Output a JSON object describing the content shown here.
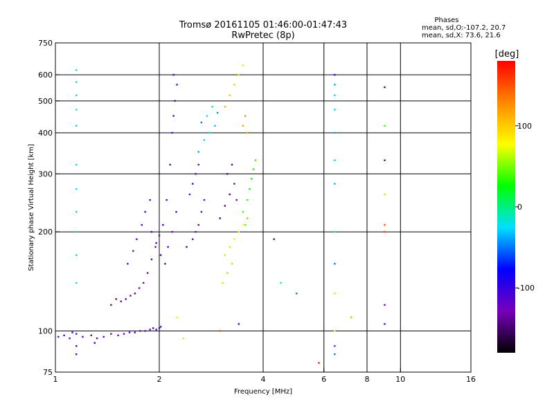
{
  "chart_data": {
    "type": "scatter",
    "title": "Tromsø 20161105 01:46:00-01:47:43",
    "subtitle": "RwPretec (8p)",
    "stats": {
      "heading": "Phases",
      "line1": "mean, sd,O:-107.2, 20.7",
      "line2": "mean, sd,X:  73.6, 21.6"
    },
    "xlabel": "Frequency [MHz]",
    "ylabel": "Stationary phase Virtual Height [km]",
    "x_scale": "log",
    "y_scale": "log",
    "xlim": [
      1,
      16
    ],
    "ylim": [
      75,
      750
    ],
    "x_ticks": [
      {
        "value": 1,
        "label": "1"
      },
      {
        "value": 2,
        "label": "2"
      },
      {
        "value": 4,
        "label": "4"
      },
      {
        "value": 6,
        "label": "6"
      },
      {
        "value": 8,
        "label": "8"
      },
      {
        "value": 10,
        "label": "10"
      },
      {
        "value": 16,
        "label": "16"
      }
    ],
    "x_gridlines": [
      2,
      4,
      6,
      8,
      10
    ],
    "y_ticks": [
      {
        "value": 75,
        "label": "75"
      },
      {
        "value": 100,
        "label": "100"
      },
      {
        "value": 200,
        "label": "200"
      },
      {
        "value": 300,
        "label": "300"
      },
      {
        "value": 400,
        "label": "400"
      },
      {
        "value": 500,
        "label": "500"
      },
      {
        "value": 600,
        "label": "600"
      },
      {
        "value": 750,
        "label": "750"
      }
    ],
    "y_gridlines": [
      100,
      200,
      300,
      400,
      500,
      600
    ],
    "grid": true,
    "colorbar": {
      "label": "[deg]",
      "range": [
        -180,
        180
      ],
      "ticks": [
        {
          "value": 100,
          "label": "100"
        },
        {
          "value": 0,
          "label": "0"
        },
        {
          "value": -100,
          "label": "-100"
        }
      ],
      "colors": [
        "#000000",
        "#7700bb",
        "#0000ff",
        "#00e0ff",
        "#00ff00",
        "#ffff00",
        "#ff8800",
        "#ff0000"
      ]
    },
    "series": [
      {
        "points": [
          [
            1.02,
            96,
            -120
          ],
          [
            1.06,
            97,
            -110
          ],
          [
            1.1,
            95,
            -115
          ],
          [
            1.15,
            98,
            -118
          ],
          [
            1.2,
            96,
            -112
          ],
          [
            1.27,
            97,
            -120
          ],
          [
            1.32,
            95,
            -108
          ],
          [
            1.38,
            96,
            -118
          ],
          [
            1.45,
            98,
            -125
          ],
          [
            1.52,
            97,
            -130
          ],
          [
            1.58,
            98,
            -122
          ],
          [
            1.64,
            99,
            -118
          ],
          [
            1.7,
            99,
            -115
          ],
          [
            1.76,
            100,
            -117
          ],
          [
            1.82,
            100,
            -120
          ],
          [
            1.88,
            101,
            -112
          ],
          [
            1.92,
            102,
            -110
          ],
          [
            1.96,
            101,
            -115
          ],
          [
            2.0,
            102,
            -108
          ],
          [
            2.02,
            103,
            -112
          ],
          [
            1.3,
            92,
            -105
          ],
          [
            1.12,
            99,
            -100
          ]
        ]
      },
      {
        "points": [
          [
            1.45,
            120,
            -135
          ],
          [
            1.5,
            125,
            -140
          ],
          [
            1.55,
            123,
            -132
          ],
          [
            1.6,
            125,
            -138
          ],
          [
            1.65,
            128,
            -130
          ],
          [
            1.7,
            130,
            -135
          ],
          [
            1.75,
            135,
            -128
          ],
          [
            1.8,
            140,
            -125
          ],
          [
            1.85,
            150,
            -122
          ],
          [
            1.9,
            165,
            -118
          ],
          [
            1.95,
            180,
            -120
          ],
          [
            2.0,
            195,
            -115
          ],
          [
            2.05,
            210,
            -112
          ],
          [
            2.1,
            250,
            -110
          ],
          [
            2.15,
            320,
            -108
          ],
          [
            2.18,
            400,
            -105
          ],
          [
            2.2,
            450,
            -110
          ],
          [
            2.22,
            500,
            -112
          ],
          [
            2.25,
            560,
            -115
          ],
          [
            2.2,
            600,
            -110
          ]
        ]
      },
      {
        "points": [
          [
            1.62,
            160,
            -120
          ],
          [
            1.68,
            175,
            -125
          ],
          [
            1.72,
            190,
            -118
          ],
          [
            1.78,
            210,
            -122
          ],
          [
            1.82,
            230,
            -115
          ],
          [
            1.88,
            250,
            -120
          ],
          [
            1.9,
            200,
            -110
          ],
          [
            1.96,
            185,
            -118
          ],
          [
            2.02,
            170,
            -112
          ],
          [
            2.08,
            160,
            -120
          ],
          [
            2.12,
            180,
            -108
          ],
          [
            2.18,
            200,
            -115
          ],
          [
            2.24,
            230,
            -110
          ]
        ]
      },
      {
        "points": [
          [
            2.4,
            180,
            -140
          ],
          [
            2.5,
            190,
            -135
          ],
          [
            2.55,
            200,
            -130
          ],
          [
            2.6,
            210,
            -125
          ],
          [
            2.65,
            230,
            -120
          ],
          [
            2.7,
            250,
            -118
          ],
          [
            2.45,
            260,
            -115
          ],
          [
            2.5,
            280,
            -110
          ],
          [
            2.55,
            300,
            -120
          ],
          [
            2.6,
            320,
            -125
          ]
        ]
      },
      {
        "points": [
          [
            2.6,
            350,
            -40
          ],
          [
            2.7,
            380,
            -30
          ],
          [
            2.8,
            400,
            -20
          ],
          [
            2.9,
            420,
            -35
          ],
          [
            2.75,
            450,
            -25
          ],
          [
            2.85,
            480,
            -30
          ],
          [
            2.95,
            460,
            -45
          ],
          [
            2.65,
            430,
            -50
          ]
        ]
      },
      {
        "points": [
          [
            3.0,
            220,
            -150
          ],
          [
            3.1,
            240,
            -145
          ],
          [
            3.2,
            260,
            -140
          ],
          [
            3.3,
            280,
            -135
          ],
          [
            3.15,
            300,
            -148
          ],
          [
            3.25,
            320,
            -140
          ],
          [
            3.35,
            250,
            -130
          ]
        ]
      },
      {
        "points": [
          [
            3.1,
            170,
            60
          ],
          [
            3.2,
            180,
            65
          ],
          [
            3.3,
            190,
            70
          ],
          [
            3.4,
            200,
            75
          ],
          [
            3.5,
            210,
            80
          ],
          [
            3.25,
            160,
            55
          ],
          [
            3.15,
            150,
            50
          ],
          [
            3.05,
            140,
            58
          ]
        ]
      },
      {
        "points": [
          [
            3.5,
            230,
            40
          ],
          [
            3.6,
            250,
            35
          ],
          [
            3.65,
            270,
            30
          ],
          [
            3.7,
            290,
            25
          ],
          [
            3.75,
            310,
            30
          ],
          [
            3.8,
            330,
            35
          ],
          [
            3.6,
            220,
            45
          ],
          [
            3.55,
            210,
            40
          ]
        ]
      },
      {
        "points": [
          [
            3.1,
            480,
            110
          ],
          [
            3.2,
            520,
            105
          ],
          [
            3.3,
            560,
            100
          ],
          [
            3.5,
            420,
            120
          ],
          [
            3.55,
            450,
            125
          ],
          [
            3.6,
            400,
            118
          ],
          [
            3.4,
            600,
            95
          ],
          [
            3.5,
            640,
            90
          ]
        ]
      },
      {
        "points": [
          [
            1.15,
            620,
            -10
          ],
          [
            1.15,
            570,
            -5
          ],
          [
            1.15,
            520,
            -15
          ],
          [
            1.15,
            470,
            -12
          ],
          [
            1.15,
            420,
            -8
          ],
          [
            1.15,
            320,
            -20
          ],
          [
            1.15,
            270,
            -25
          ],
          [
            1.15,
            230,
            -30
          ],
          [
            1.15,
            200,
            -15
          ],
          [
            1.15,
            170,
            -10
          ],
          [
            1.15,
            140,
            -18
          ],
          [
            1.15,
            90,
            -100
          ],
          [
            1.15,
            85,
            -110
          ]
        ]
      },
      {
        "points": [
          [
            6.45,
            600,
            -100
          ],
          [
            6.45,
            560,
            -40
          ],
          [
            6.45,
            520,
            -20
          ],
          [
            6.45,
            470,
            -30
          ],
          [
            6.45,
            400,
            -40
          ],
          [
            6.45,
            330,
            -30
          ],
          [
            6.45,
            280,
            -35
          ],
          [
            6.45,
            200,
            -20
          ],
          [
            6.45,
            160,
            -50
          ],
          [
            6.45,
            130,
            90
          ],
          [
            6.45,
            100,
            80
          ],
          [
            6.45,
            90,
            -60
          ],
          [
            6.45,
            85,
            -50
          ]
        ]
      },
      {
        "points": [
          [
            9.0,
            550,
            -150
          ],
          [
            9.0,
            420,
            40
          ],
          [
            9.0,
            330,
            -140
          ],
          [
            9.0,
            260,
            60
          ],
          [
            9.0,
            210,
            150
          ],
          [
            9.0,
            200,
            155
          ],
          [
            9.0,
            120,
            -130
          ],
          [
            9.0,
            105,
            -120
          ]
        ]
      },
      {
        "points": [
          [
            4.5,
            140,
            -20
          ],
          [
            4.3,
            190,
            -140
          ],
          [
            5.0,
            130,
            -50
          ],
          [
            5.8,
            80,
            170
          ],
          [
            7.2,
            110,
            110
          ],
          [
            3.0,
            100,
            155
          ],
          [
            3.4,
            105,
            -100
          ],
          [
            2.35,
            95,
            60
          ],
          [
            2.25,
            110,
            70
          ]
        ]
      }
    ]
  }
}
